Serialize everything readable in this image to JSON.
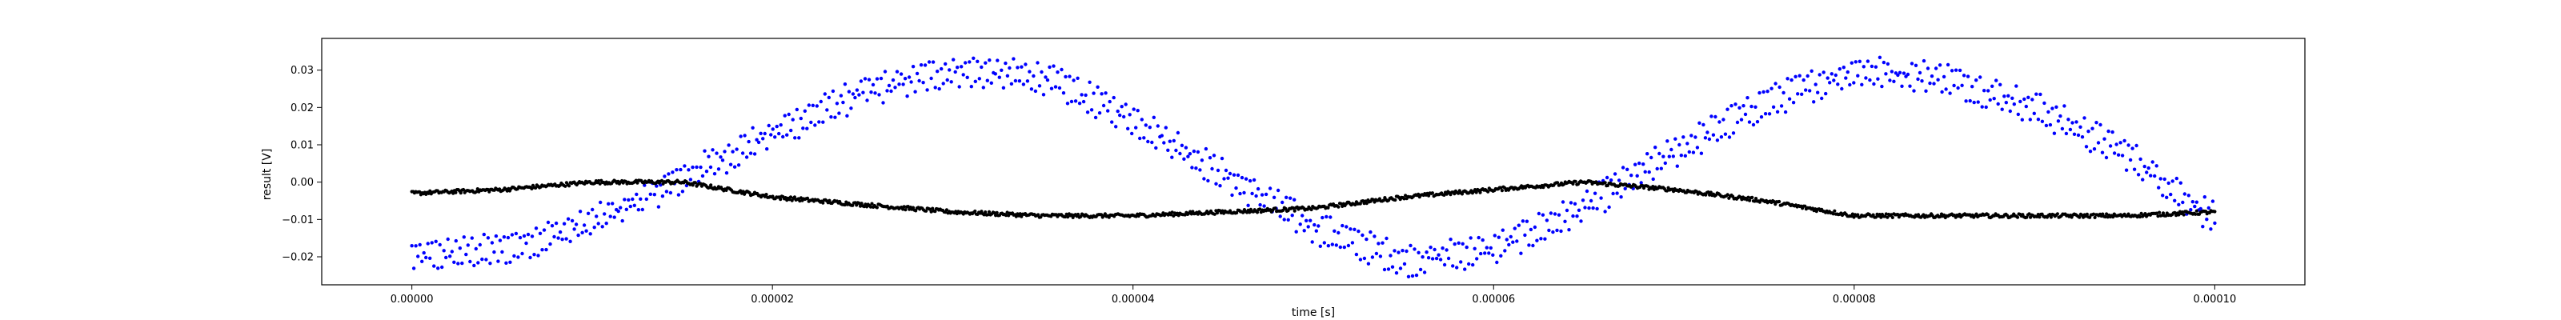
{
  "chart_data": {
    "type": "scatter",
    "xlabel": "time [s]",
    "ylabel": "result [V]",
    "xlim": [
      -5e-06,
      0.000105
    ],
    "ylim": [
      -0.0275,
      0.0385
    ],
    "xticks": [
      0,
      2e-05,
      4e-05,
      6e-05,
      8e-05,
      0.0001
    ],
    "xtick_labels": [
      "0.00000",
      "0.00002",
      "0.00004",
      "0.00006",
      "0.00008",
      "0.00010"
    ],
    "yticks": [
      -0.02,
      -0.01,
      0.0,
      0.01,
      0.02,
      0.03
    ],
    "ytick_labels": [
      "−0.02",
      "−0.01",
      "0.00",
      "0.01",
      "0.02",
      "0.03"
    ],
    "grid": false,
    "legend": "none",
    "series": [
      {
        "color": "#0000ff",
        "marker": "dot",
        "x": [
          0,
          5e-06,
          1e-05,
          1.5e-05,
          2e-05,
          2.5e-05,
          3e-05,
          3.5e-05,
          4e-05,
          4.5e-05,
          5e-05,
          5.5e-05,
          6e-05,
          6.5e-05,
          7e-05,
          7.5e-05,
          8e-05,
          8.5e-05,
          9e-05,
          9.5e-05,
          0.0001
        ],
        "y": [
          -0.02,
          -0.018,
          -0.011,
          0.001,
          0.013,
          0.024,
          0.03,
          0.028,
          0.017,
          0.002,
          -0.012,
          -0.021,
          -0.018,
          -0.007,
          0.008,
          0.021,
          0.03,
          0.028,
          0.02,
          0.008,
          -0.01
        ],
        "spread": 0.005
      },
      {
        "color": "#000000",
        "marker": "dot",
        "x": [
          0,
          5e-06,
          1e-05,
          1.5e-05,
          2e-05,
          2.5e-05,
          3e-05,
          3.5e-05,
          4e-05,
          4.5e-05,
          5e-05,
          5.5e-05,
          6e-05,
          6.5e-05,
          7e-05,
          7.5e-05,
          8e-05,
          8.5e-05,
          9e-05,
          9.5e-05,
          0.0001
        ],
        "y": [
          -0.003,
          -0.002,
          0.0,
          0.0,
          -0.004,
          -0.006,
          -0.008,
          -0.009,
          -0.009,
          -0.008,
          -0.007,
          -0.004,
          -0.002,
          0.0,
          -0.002,
          -0.005,
          -0.009,
          -0.009,
          -0.009,
          -0.009,
          -0.008
        ],
        "spread": 0.0005
      }
    ]
  }
}
